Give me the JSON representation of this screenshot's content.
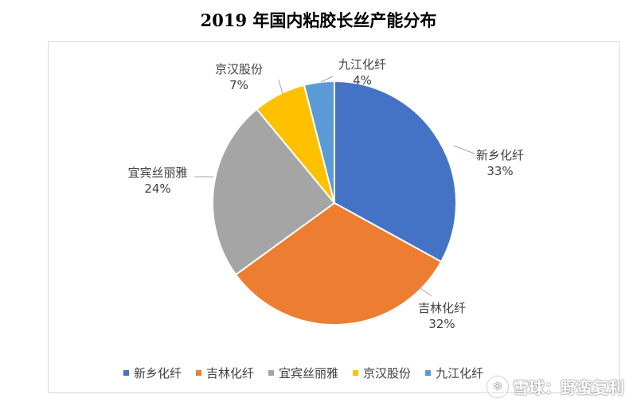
{
  "chart_data": {
    "type": "pie",
    "title": "2019 年国内粘胶长丝产能分布",
    "categories": [
      "新乡化纤",
      "吉林化纤",
      "宜宾丝丽雅",
      "京汉股份",
      "九江化纤"
    ],
    "values": [
      33,
      32,
      24,
      7,
      4
    ],
    "value_labels": [
      "33%",
      "32%",
      "24%",
      "7%",
      "4%"
    ],
    "colors": [
      "#4472C4",
      "#ED7D31",
      "#A5A5A5",
      "#FFC000",
      "#5B9BD5"
    ],
    "legend": "bottom"
  },
  "watermark": {
    "text": "雪球：野蛮复利"
  }
}
